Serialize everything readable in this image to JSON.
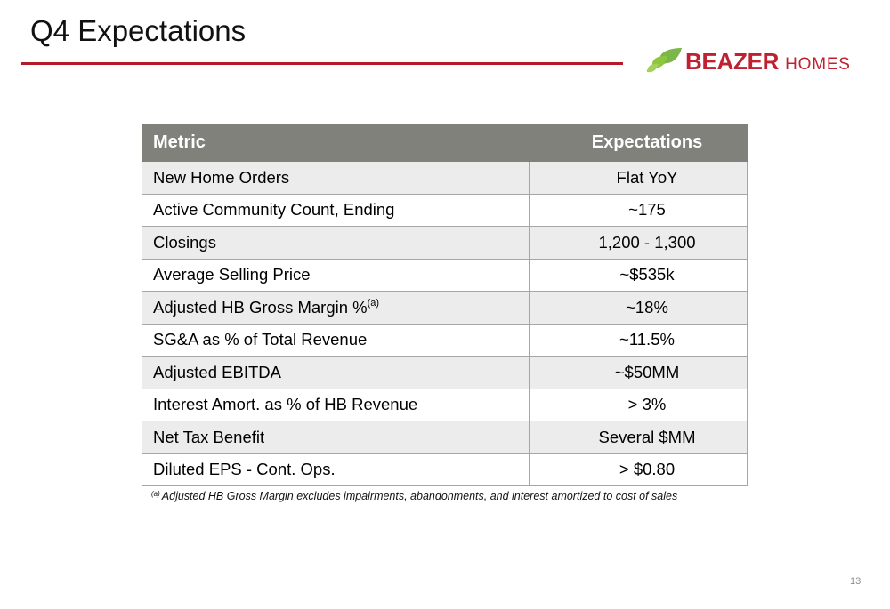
{
  "slide": {
    "title": "Q4 Expectations",
    "page_number": "13"
  },
  "logo": {
    "bold_text": "BEAZER",
    "light_text": "HOMES",
    "icon": "leaf-icon",
    "color": "#c0202f",
    "leaf_color": "#7ab648"
  },
  "table": {
    "headers": [
      "Metric",
      "Expectations"
    ],
    "header_bg": "#7f817a",
    "rows": [
      {
        "metric": "New Home Orders",
        "note": "",
        "value": "Flat YoY"
      },
      {
        "metric": "Active Community Count, Ending",
        "note": "",
        "value": "~175"
      },
      {
        "metric": "Closings",
        "note": "",
        "value": "1,200 - 1,300"
      },
      {
        "metric": "Average Selling Price",
        "note": "",
        "value": "~$535k"
      },
      {
        "metric": "Adjusted HB Gross Margin %",
        "note": "(a)",
        "value": "~18%"
      },
      {
        "metric": "SG&A as % of Total Revenue",
        "note": "",
        "value": "~11.5%"
      },
      {
        "metric": "Adjusted EBITDA",
        "note": "",
        "value": "~$50MM"
      },
      {
        "metric": "Interest Amort. as % of HB Revenue",
        "note": "",
        "value": "> 3%"
      },
      {
        "metric": "Net Tax Benefit",
        "note": "",
        "value": "Several $MM"
      },
      {
        "metric": "Diluted EPS - Cont. Ops.",
        "note": "",
        "value": "> $0.80"
      }
    ]
  },
  "footnote": {
    "marker": "(a)",
    "text": "Adjusted HB Gross Margin excludes impairments, abandonments, and interest amortized to cost of sales"
  },
  "colors": {
    "accent_rule": "#b31b2b",
    "row_shade": "#ececec"
  }
}
